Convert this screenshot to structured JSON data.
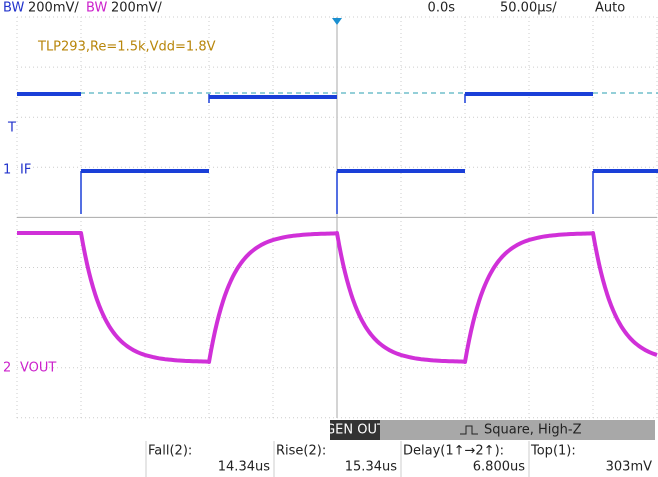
{
  "header": {
    "ch1_bw": "BW",
    "ch1_scale": "200mV/",
    "ch2_bw": "BW",
    "ch2_scale": "200mV/",
    "time_offset": "0.0s",
    "time_scale": "50.00µs/",
    "trigger_mode": "Auto"
  },
  "annotation": "TLP293,Re=1.5k,Vdd=1.8V",
  "markers": {
    "trigger": "T",
    "ch1_number": "1",
    "ch1_label": "IF",
    "ch2_number": "2",
    "ch2_label": "VOUT"
  },
  "generator": {
    "button": "GEN OUT",
    "status": "Square, High-Z"
  },
  "measurements": [
    {
      "label": "Fall(2):",
      "value": "14.34us"
    },
    {
      "label": "Rise(2):",
      "value": "15.34us"
    },
    {
      "label": "Delay(1↑→2↑):",
      "value": "6.800us"
    },
    {
      "label": "Top(1):",
      "value": "303mV"
    }
  ]
}
